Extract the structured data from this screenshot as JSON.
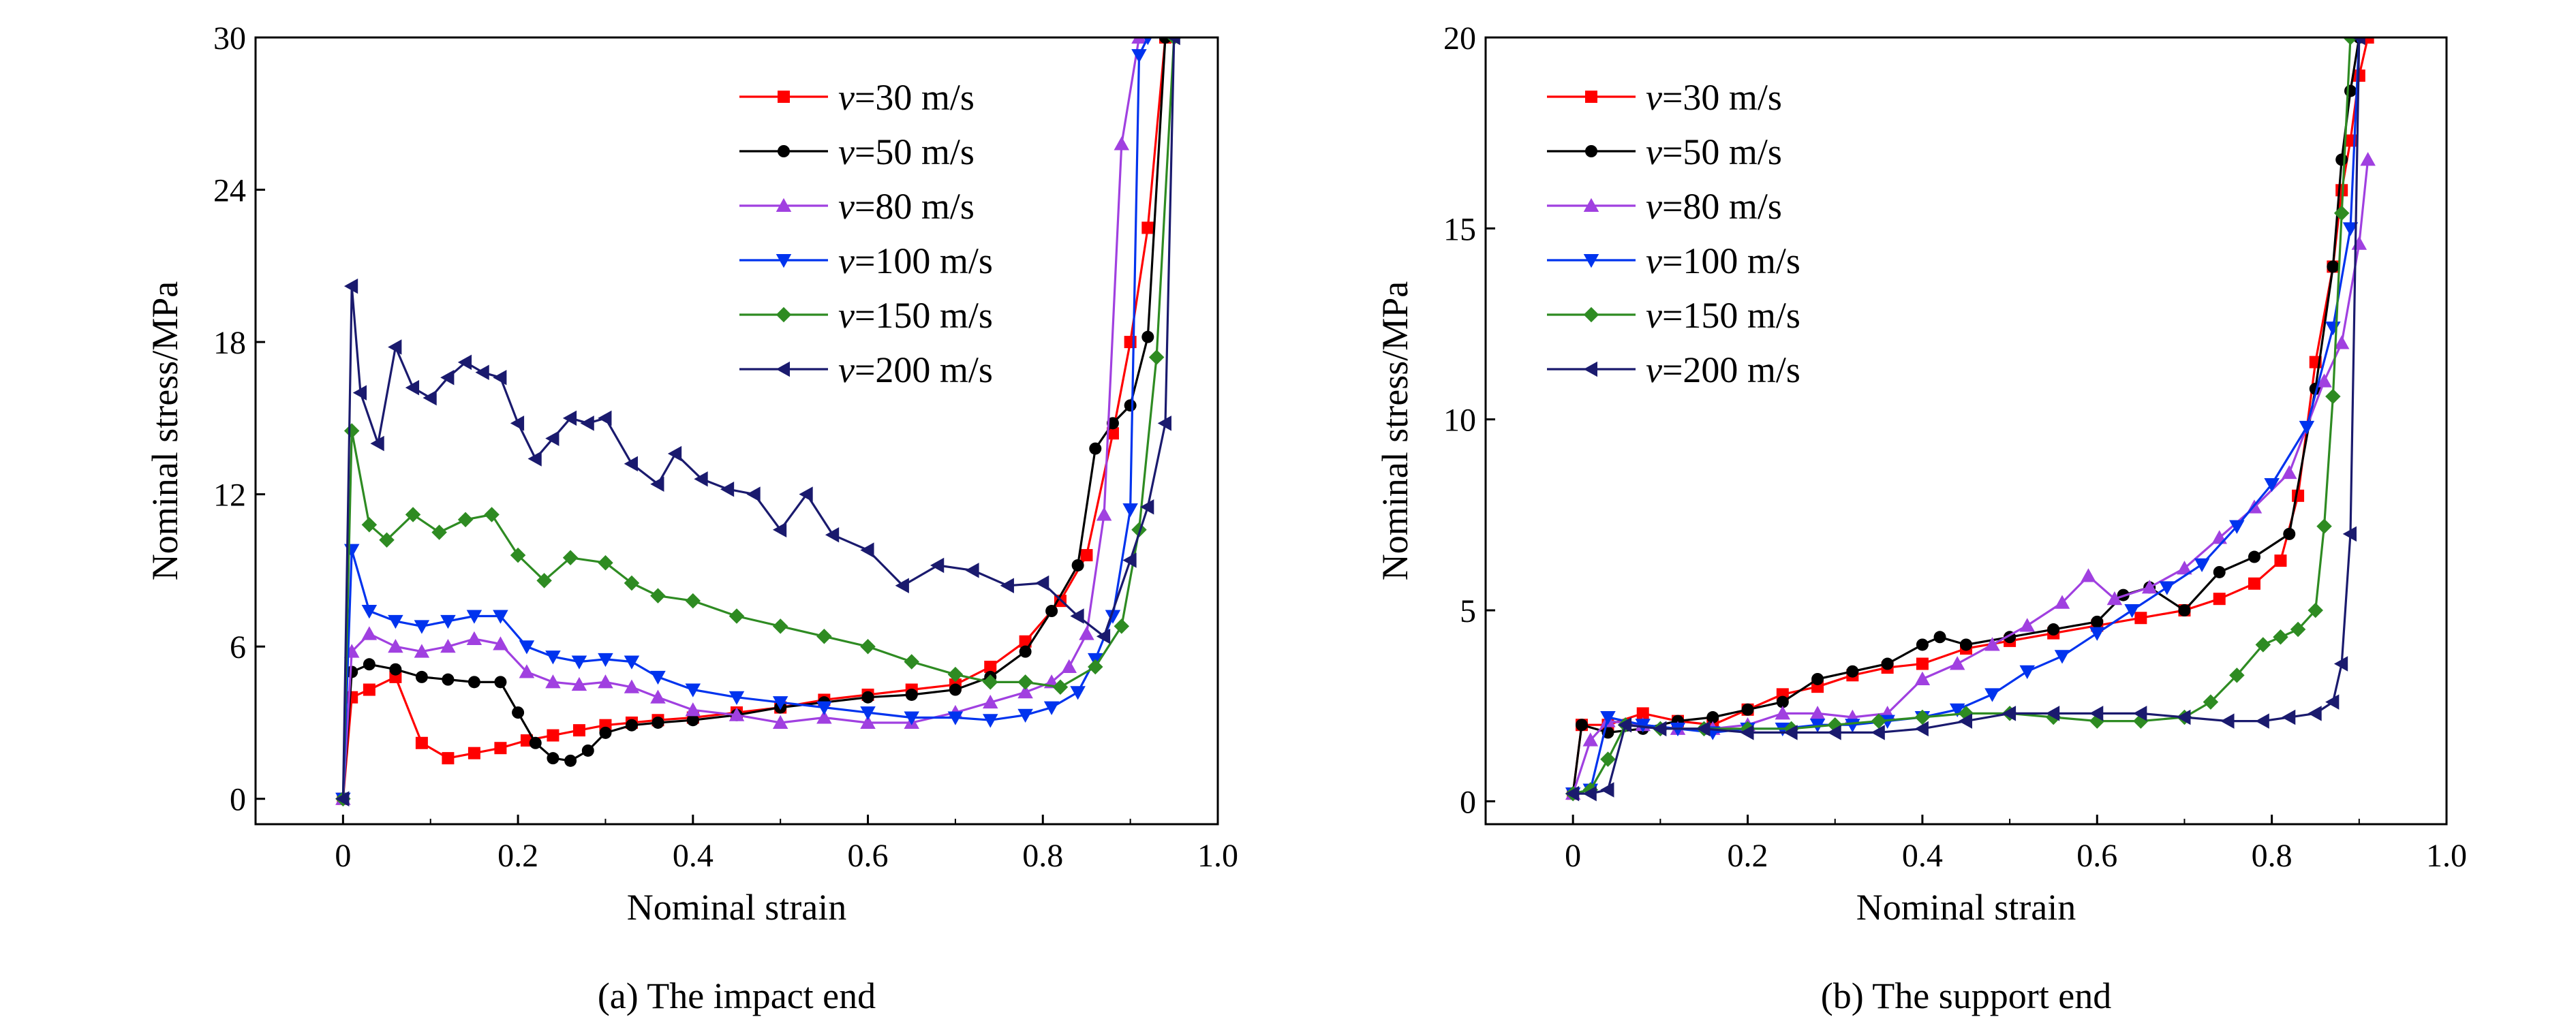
{
  "chart_data": [
    {
      "type": "line",
      "caption": "(a) The impact end",
      "xlabel": "Nominal strain",
      "ylabel": "Nominal stress/MPa",
      "xlim": [
        -0.1,
        1.0
      ],
      "ylim": [
        -1,
        30
      ],
      "xticks": [
        0,
        0.2,
        0.4,
        0.6,
        0.8,
        1.0
      ],
      "xtick_labels": [
        "0",
        "0.2",
        "0.4",
        "0.6",
        "0.8",
        "1.0"
      ],
      "yticks": [
        0,
        6,
        12,
        18,
        24,
        30
      ],
      "ytick_labels": [
        "0",
        "6",
        "12",
        "18",
        "24",
        "30"
      ],
      "legend_position": "top-right",
      "series": [
        {
          "name": "=30 m/s",
          "prefix": "v",
          "color": "#ff0000",
          "marker": "square",
          "x": [
            0,
            0.01,
            0.03,
            0.06,
            0.09,
            0.12,
            0.15,
            0.18,
            0.21,
            0.24,
            0.27,
            0.3,
            0.33,
            0.36,
            0.4,
            0.45,
            0.5,
            0.55,
            0.6,
            0.65,
            0.7,
            0.74,
            0.78,
            0.82,
            0.85,
            0.88,
            0.9,
            0.92,
            0.94
          ],
          "y": [
            0,
            4.0,
            4.3,
            4.8,
            2.2,
            1.6,
            1.8,
            2.0,
            2.3,
            2.5,
            2.7,
            2.9,
            3.0,
            3.1,
            3.2,
            3.4,
            3.6,
            3.9,
            4.1,
            4.3,
            4.5,
            5.2,
            6.2,
            7.8,
            9.6,
            14.4,
            18,
            22.5,
            30
          ]
        },
        {
          "name": "=50 m/s",
          "prefix": "v",
          "color": "#000000",
          "marker": "circle",
          "x": [
            0,
            0.01,
            0.03,
            0.06,
            0.09,
            0.12,
            0.15,
            0.18,
            0.2,
            0.22,
            0.24,
            0.26,
            0.28,
            0.3,
            0.33,
            0.36,
            0.4,
            0.45,
            0.5,
            0.55,
            0.6,
            0.65,
            0.7,
            0.74,
            0.78,
            0.81,
            0.84,
            0.86,
            0.88,
            0.9,
            0.92,
            0.94
          ],
          "y": [
            0,
            5.0,
            5.3,
            5.1,
            4.8,
            4.7,
            4.6,
            4.6,
            3.4,
            2.2,
            1.6,
            1.5,
            1.9,
            2.6,
            2.9,
            3.0,
            3.1,
            3.3,
            3.6,
            3.8,
            4.0,
            4.1,
            4.3,
            4.8,
            5.8,
            7.4,
            9.2,
            13.8,
            14.8,
            15.5,
            18.2,
            30
          ]
        },
        {
          "name": "=80 m/s",
          "prefix": "v",
          "color": "#a040e0",
          "marker": "triangle-up",
          "x": [
            0,
            0.01,
            0.03,
            0.06,
            0.09,
            0.12,
            0.15,
            0.18,
            0.21,
            0.24,
            0.27,
            0.3,
            0.33,
            0.36,
            0.4,
            0.45,
            0.5,
            0.55,
            0.6,
            0.65,
            0.7,
            0.74,
            0.78,
            0.81,
            0.83,
            0.85,
            0.87,
            0.89,
            0.91
          ],
          "y": [
            0,
            5.8,
            6.5,
            6.0,
            5.8,
            6.0,
            6.3,
            6.1,
            5.0,
            4.6,
            4.5,
            4.6,
            4.4,
            4.0,
            3.5,
            3.3,
            3.0,
            3.2,
            3.0,
            3.0,
            3.4,
            3.8,
            4.2,
            4.6,
            5.2,
            6.5,
            11.2,
            25.8,
            30
          ]
        },
        {
          "name": "=100 m/s",
          "prefix": "v",
          "color": "#0033ee",
          "marker": "triangle-down",
          "x": [
            0,
            0.01,
            0.03,
            0.06,
            0.09,
            0.12,
            0.15,
            0.18,
            0.21,
            0.24,
            0.27,
            0.3,
            0.33,
            0.36,
            0.4,
            0.45,
            0.5,
            0.55,
            0.6,
            0.65,
            0.7,
            0.74,
            0.78,
            0.81,
            0.84,
            0.86,
            0.88,
            0.9,
            0.91,
            0.92
          ],
          "y": [
            0,
            9.8,
            7.4,
            7.0,
            6.8,
            7.0,
            7.2,
            7.2,
            6.0,
            5.6,
            5.4,
            5.5,
            5.4,
            4.8,
            4.3,
            4.0,
            3.8,
            3.6,
            3.4,
            3.2,
            3.2,
            3.1,
            3.3,
            3.6,
            4.2,
            5.5,
            7.2,
            11.4,
            29.3,
            30
          ]
        },
        {
          "name": "=150 m/s",
          "prefix": "v",
          "color": "#2e8b22",
          "marker": "diamond",
          "x": [
            0,
            0.01,
            0.03,
            0.05,
            0.08,
            0.11,
            0.14,
            0.17,
            0.2,
            0.23,
            0.26,
            0.3,
            0.33,
            0.36,
            0.4,
            0.45,
            0.5,
            0.55,
            0.6,
            0.65,
            0.7,
            0.74,
            0.78,
            0.82,
            0.86,
            0.89,
            0.91,
            0.93,
            0.95
          ],
          "y": [
            0,
            14.5,
            10.8,
            10.2,
            11.2,
            10.5,
            11.0,
            11.2,
            9.6,
            8.6,
            9.5,
            9.3,
            8.5,
            8.0,
            7.8,
            7.2,
            6.8,
            6.4,
            6.0,
            5.4,
            4.9,
            4.6,
            4.6,
            4.4,
            5.2,
            6.8,
            10.6,
            17.4,
            30
          ]
        },
        {
          "name": "=200 m/s",
          "prefix": "v",
          "color": "#1a1a6e",
          "marker": "triangle-left",
          "x": [
            0,
            0.01,
            0.02,
            0.04,
            0.06,
            0.08,
            0.1,
            0.12,
            0.14,
            0.16,
            0.18,
            0.2,
            0.22,
            0.24,
            0.26,
            0.28,
            0.3,
            0.33,
            0.36,
            0.38,
            0.41,
            0.44,
            0.47,
            0.5,
            0.53,
            0.56,
            0.6,
            0.64,
            0.68,
            0.72,
            0.76,
            0.8,
            0.84,
            0.87,
            0.9,
            0.92,
            0.94,
            0.95
          ],
          "y": [
            0,
            20.2,
            16.0,
            14.0,
            17.8,
            16.2,
            15.8,
            16.6,
            17.2,
            16.8,
            16.6,
            14.8,
            13.4,
            14.2,
            15.0,
            14.8,
            15.0,
            13.2,
            12.4,
            13.6,
            12.6,
            12.2,
            12.0,
            10.6,
            12.0,
            10.4,
            9.8,
            8.4,
            9.2,
            9.0,
            8.4,
            8.5,
            7.2,
            6.4,
            9.4,
            11.5,
            14.8,
            30
          ]
        }
      ]
    },
    {
      "type": "line",
      "caption": "(b) The support end",
      "xlabel": "Nominal strain",
      "ylabel": "Nominal stress/MPa",
      "xlim": [
        -0.1,
        1.0
      ],
      "ylim": [
        -0.6,
        20
      ],
      "xticks": [
        0,
        0.2,
        0.4,
        0.6,
        0.8,
        1.0
      ],
      "xtick_labels": [
        "0",
        "0.2",
        "0.4",
        "0.6",
        "0.8",
        "1.0"
      ],
      "yticks": [
        0,
        5,
        10,
        15,
        20
      ],
      "ytick_labels": [
        "0",
        "5",
        "10",
        "15",
        "20"
      ],
      "legend_position": "top-left",
      "series": [
        {
          "name": "=30 m/s",
          "prefix": "v",
          "color": "#ff0000",
          "marker": "square",
          "x": [
            0,
            0.01,
            0.04,
            0.08,
            0.12,
            0.16,
            0.2,
            0.24,
            0.28,
            0.32,
            0.36,
            0.4,
            0.45,
            0.5,
            0.55,
            0.6,
            0.65,
            0.7,
            0.74,
            0.78,
            0.81,
            0.83,
            0.85,
            0.87,
            0.88,
            0.89,
            0.9,
            0.91
          ],
          "y": [
            0.2,
            2.0,
            2.0,
            2.3,
            2.1,
            2.0,
            2.4,
            2.8,
            3.0,
            3.3,
            3.5,
            3.6,
            4.0,
            4.2,
            4.4,
            4.6,
            4.8,
            5.0,
            5.3,
            5.7,
            6.3,
            8.0,
            11.5,
            14.0,
            16.0,
            17.3,
            19.0,
            20
          ]
        },
        {
          "name": "=50 m/s",
          "prefix": "v",
          "color": "#000000",
          "marker": "circle",
          "x": [
            0,
            0.01,
            0.04,
            0.08,
            0.12,
            0.16,
            0.2,
            0.24,
            0.28,
            0.32,
            0.36,
            0.4,
            0.42,
            0.45,
            0.5,
            0.55,
            0.6,
            0.63,
            0.66,
            0.7,
            0.74,
            0.78,
            0.82,
            0.85,
            0.87,
            0.88,
            0.89,
            0.9
          ],
          "y": [
            0.2,
            2.0,
            1.8,
            1.9,
            2.1,
            2.2,
            2.4,
            2.6,
            3.2,
            3.4,
            3.6,
            4.1,
            4.3,
            4.1,
            4.3,
            4.5,
            4.7,
            5.4,
            5.6,
            5.0,
            6.0,
            6.4,
            7.0,
            10.8,
            14.0,
            16.8,
            18.6,
            20
          ]
        },
        {
          "name": "=80 m/s",
          "prefix": "v",
          "color": "#a040e0",
          "marker": "triangle-up",
          "x": [
            0,
            0.02,
            0.04,
            0.08,
            0.12,
            0.16,
            0.2,
            0.24,
            0.28,
            0.32,
            0.36,
            0.4,
            0.44,
            0.48,
            0.52,
            0.56,
            0.59,
            0.62,
            0.66,
            0.7,
            0.74,
            0.78,
            0.82,
            0.86,
            0.88,
            0.9,
            0.91
          ],
          "y": [
            0.2,
            1.6,
            2.1,
            2.0,
            1.9,
            1.9,
            2.0,
            2.3,
            2.3,
            2.2,
            2.3,
            3.2,
            3.6,
            4.1,
            4.6,
            5.2,
            5.9,
            5.3,
            5.6,
            6.1,
            6.9,
            7.7,
            8.6,
            11.0,
            12.0,
            14.6,
            16.8
          ]
        },
        {
          "name": "=100 m/s",
          "prefix": "v",
          "color": "#0033ee",
          "marker": "triangle-down",
          "x": [
            0,
            0.02,
            0.04,
            0.08,
            0.12,
            0.16,
            0.2,
            0.24,
            0.28,
            0.32,
            0.36,
            0.4,
            0.44,
            0.48,
            0.52,
            0.56,
            0.6,
            0.64,
            0.68,
            0.72,
            0.76,
            0.8,
            0.84,
            0.87,
            0.89,
            0.9
          ],
          "y": [
            0.2,
            0.3,
            2.2,
            2.0,
            1.9,
            1.8,
            1.9,
            1.9,
            2.0,
            2.0,
            2.1,
            2.2,
            2.4,
            2.8,
            3.4,
            3.8,
            4.4,
            5.0,
            5.6,
            6.2,
            7.2,
            8.3,
            9.8,
            12.4,
            15.0,
            20
          ]
        },
        {
          "name": "=150 m/s",
          "prefix": "v",
          "color": "#2e8b22",
          "marker": "diamond",
          "x": [
            0,
            0.02,
            0.04,
            0.06,
            0.1,
            0.15,
            0.2,
            0.25,
            0.3,
            0.35,
            0.4,
            0.45,
            0.5,
            0.55,
            0.6,
            0.65,
            0.7,
            0.73,
            0.76,
            0.79,
            0.81,
            0.83,
            0.85,
            0.86,
            0.87,
            0.88,
            0.89
          ],
          "y": [
            0.2,
            0.3,
            1.1,
            2.0,
            1.9,
            1.9,
            1.9,
            1.9,
            2.0,
            2.1,
            2.2,
            2.3,
            2.3,
            2.2,
            2.1,
            2.1,
            2.2,
            2.6,
            3.3,
            4.1,
            4.3,
            4.5,
            5.0,
            7.2,
            10.6,
            15.4,
            20
          ]
        },
        {
          "name": "=200 m/s",
          "prefix": "v",
          "color": "#1a1a6e",
          "marker": "triangle-left",
          "x": [
            0,
            0.02,
            0.04,
            0.06,
            0.1,
            0.15,
            0.2,
            0.25,
            0.3,
            0.35,
            0.4,
            0.45,
            0.5,
            0.55,
            0.6,
            0.65,
            0.7,
            0.75,
            0.79,
            0.82,
            0.85,
            0.87,
            0.88,
            0.89,
            0.9
          ],
          "y": [
            0.2,
            0.2,
            0.3,
            2.0,
            1.9,
            1.9,
            1.8,
            1.8,
            1.8,
            1.8,
            1.9,
            2.1,
            2.3,
            2.3,
            2.3,
            2.3,
            2.2,
            2.1,
            2.1,
            2.2,
            2.3,
            2.6,
            3.6,
            7.0,
            20
          ]
        }
      ]
    }
  ]
}
